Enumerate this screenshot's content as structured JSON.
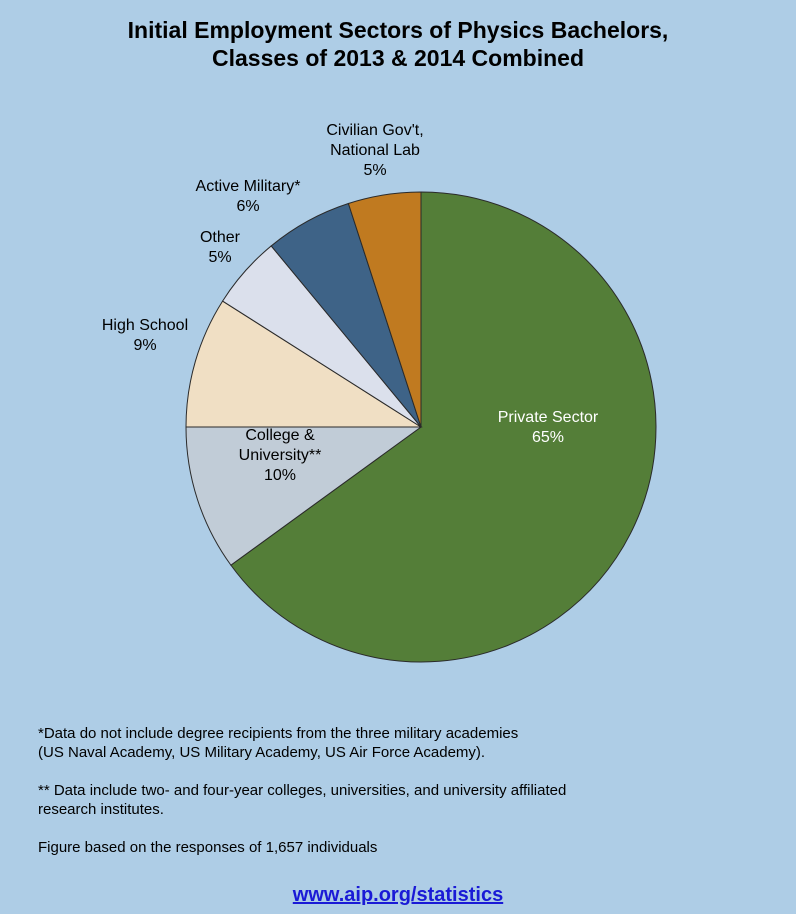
{
  "chart_data": {
    "type": "pie",
    "title": "Initial Employment Sectors of Physics Bachelors,\nClasses of 2013 & 2014 Combined",
    "title_lines": [
      "Initial Employment Sectors of Physics Bachelors,",
      "Classes of 2013 & 2014 Combined"
    ],
    "slices": [
      {
        "label_lines": [
          "Private Sector"
        ],
        "value": 65,
        "value_label": "65%",
        "color": "#547e38"
      },
      {
        "label_lines": [
          "College &",
          "University**"
        ],
        "value": 10,
        "value_label": "10%",
        "color": "#c1ccd7"
      },
      {
        "label_lines": [
          "High School"
        ],
        "value": 9,
        "value_label": "9%",
        "color": "#f0dfc4"
      },
      {
        "label_lines": [
          "Other"
        ],
        "value": 5,
        "value_label": "5%",
        "color": "#dbe0ec"
      },
      {
        "label_lines": [
          "Active Military*"
        ],
        "value": 6,
        "value_label": "6%",
        "color": "#3e6387"
      },
      {
        "label_lines": [
          "Civilian Gov't,",
          "National Lab"
        ],
        "value": 5,
        "value_label": "5%",
        "color": "#c07a20"
      }
    ]
  },
  "notes": {
    "military_line1": "*Data do not include degree recipients from the three military academies",
    "military_line2": "(US Naval Academy, US Military Academy, US Air Force Academy).",
    "college_line1": "** Data include two- and four-year colleges, universities, and university affiliated",
    "college_line2": "research institutes.",
    "sample": "Figure based on the responses of 1,657 individuals"
  },
  "footer": {
    "link": "www.aip.org/statistics"
  }
}
